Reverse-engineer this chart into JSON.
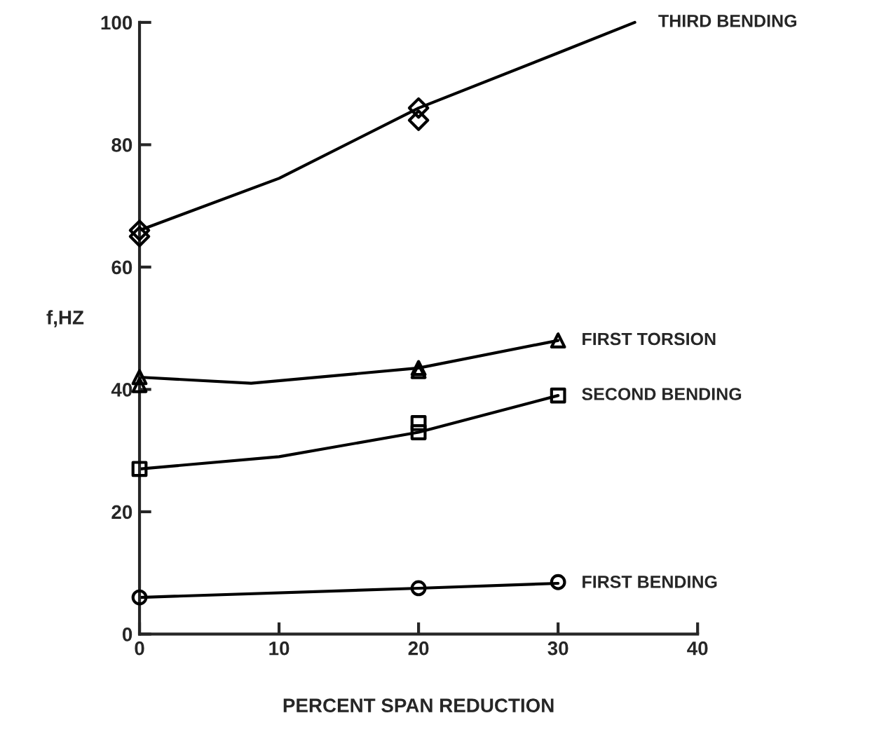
{
  "chart_data": {
    "type": "line",
    "xlabel": "PERCENT SPAN REDUCTION",
    "ylabel": "f,HZ",
    "xlim": [
      0,
      40
    ],
    "ylim": [
      0,
      100
    ],
    "xticks": [
      0,
      10,
      20,
      30,
      40
    ],
    "yticks": [
      0,
      20,
      40,
      60,
      80,
      100
    ],
    "grid": false,
    "legend": false,
    "line_style": "solid",
    "series": [
      {
        "name": "THIRD BENDING",
        "color": "#000000",
        "marker": "none",
        "x": [
          0,
          10,
          20,
          30,
          35.5
        ],
        "values": [
          66,
          74.5,
          86,
          95,
          100
        ]
      },
      {
        "type": "scatter",
        "color": "#000000",
        "marker": "diamond",
        "x": [
          0,
          0,
          20,
          20
        ],
        "values": [
          66,
          65,
          86,
          84
        ]
      },
      {
        "type": "line",
        "name": "FIRST TORSION",
        "color": "#000000",
        "marker": "none",
        "x": [
          0,
          8,
          20,
          30
        ],
        "values": [
          42,
          41,
          43.5,
          48
        ]
      },
      {
        "type": "scatter",
        "color": "#000000",
        "marker": "triangle",
        "x": [
          0,
          0,
          20,
          20,
          30
        ],
        "values": [
          42,
          40.7,
          43.5,
          43,
          48
        ]
      },
      {
        "type": "line",
        "name": "SECOND BENDING",
        "color": "#000000",
        "marker": "none",
        "x": [
          0,
          10,
          20,
          30
        ],
        "values": [
          27,
          29,
          33,
          39
        ]
      },
      {
        "type": "scatter",
        "color": "#000000",
        "marker": "square",
        "x": [
          0,
          20,
          20,
          30
        ],
        "values": [
          27,
          33,
          34.5,
          39
        ]
      },
      {
        "type": "line",
        "name": "FIRST BENDING",
        "color": "#000000",
        "marker": "none",
        "x": [
          0,
          20,
          30
        ],
        "values": [
          6,
          7.5,
          8.3
        ]
      },
      {
        "type": "scatter",
        "color": "#000000",
        "marker": "circle",
        "x": [
          0,
          20,
          30
        ],
        "values": [
          6,
          7.5,
          8.5
        ]
      }
    ]
  }
}
